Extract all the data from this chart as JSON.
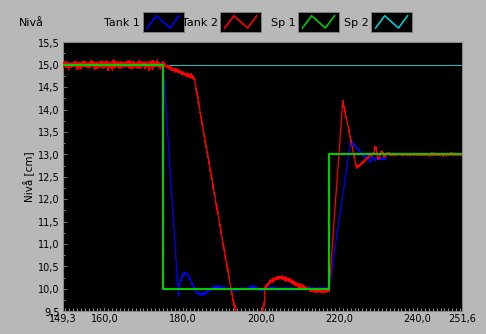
{
  "title": "Nivå",
  "ylabel": "Nivå [cm]",
  "xlim": [
    149.3,
    251.6
  ],
  "ylim": [
    9.5,
    15.5
  ],
  "yticks": [
    9.5,
    10.0,
    10.5,
    11.0,
    11.5,
    12.0,
    12.5,
    13.0,
    13.5,
    14.0,
    14.5,
    15.0,
    15.5
  ],
  "xticks": [
    149.3,
    160.0,
    180.0,
    200.0,
    220.0,
    240.0,
    251.6
  ],
  "background_color": "#000000",
  "outer_background": "#b8b8b8",
  "sp1_x": [
    149.3,
    175.0,
    175.0,
    217.5,
    217.5,
    251.6
  ],
  "sp1_y": [
    15.0,
    15.0,
    10.0,
    10.0,
    13.0,
    13.0
  ],
  "sp2_y": 15.0,
  "tank1_color": "#0000ff",
  "tank2_color": "#ff0000",
  "sp1_color": "#00cc00",
  "sp2_color": "#00cccc",
  "legend_items": [
    "Tank 1",
    "Tank 2",
    "Sp 1",
    "Sp 2"
  ],
  "legend_colors": [
    "#0000ff",
    "#ff0000",
    "#00cc00",
    "#00cccc"
  ]
}
